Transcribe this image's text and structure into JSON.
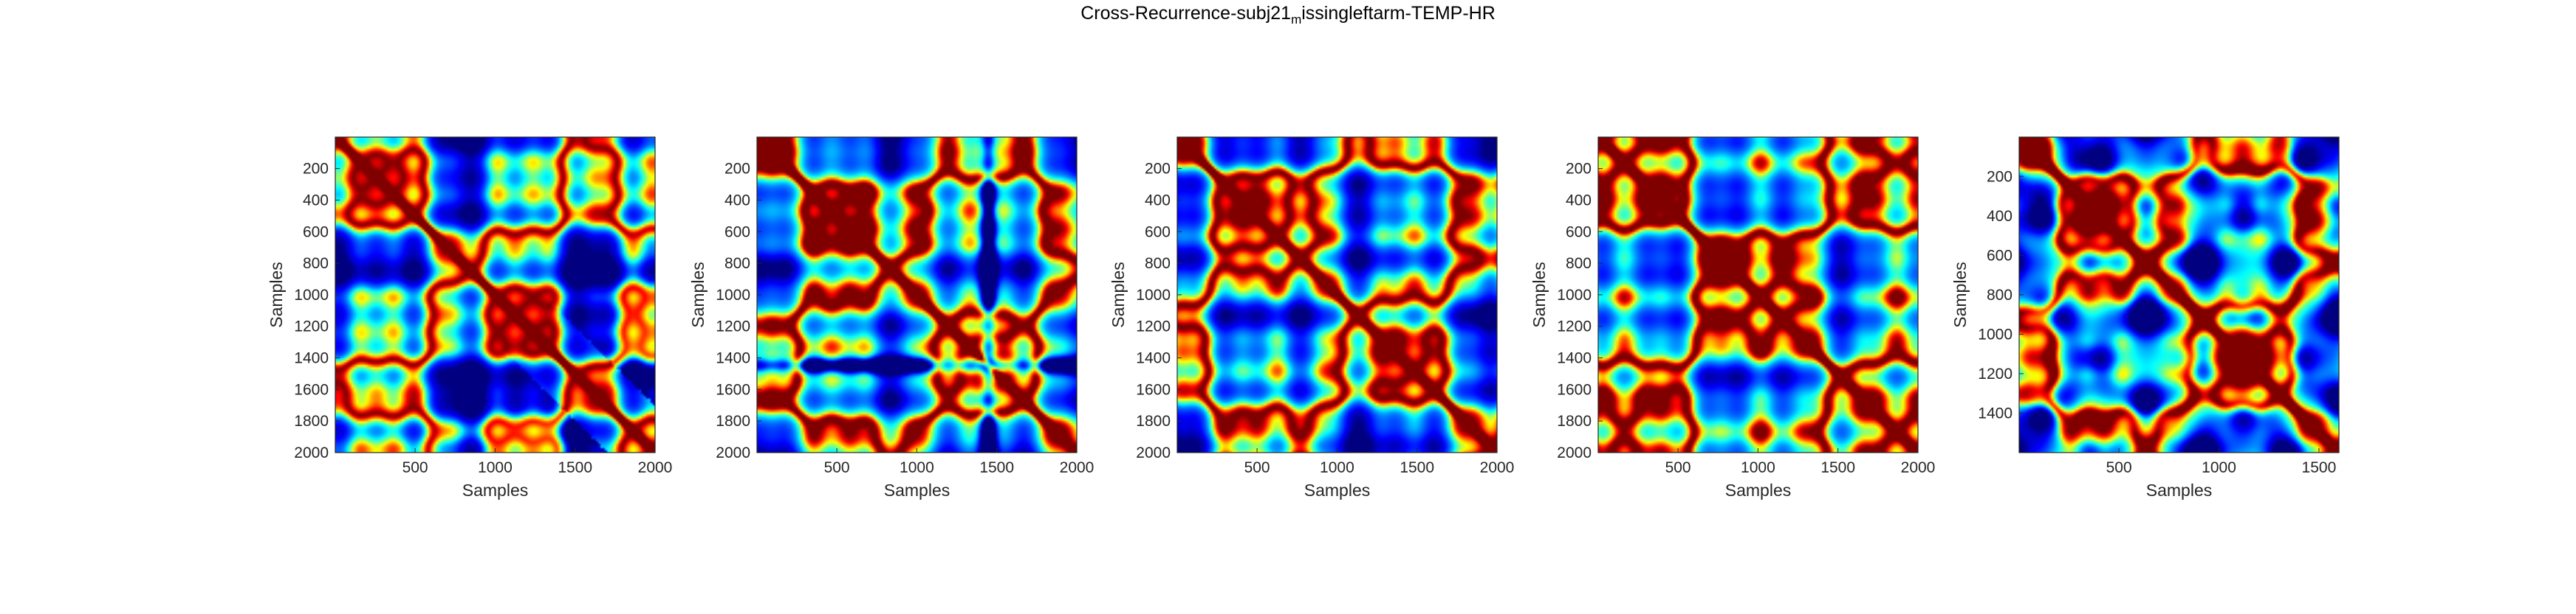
{
  "title": {
    "prefix": "Cross-Recurrence-subj21",
    "subscript": "m",
    "suffix": "issingleftarm-TEMP-HR"
  },
  "colormap": "jet",
  "chart_data": [
    {
      "type": "heatmap",
      "xlabel": "Samples",
      "ylabel": "Samples",
      "xlim": [
        1,
        2000
      ],
      "ylim": [
        1,
        2000
      ],
      "y_direction": "reversed",
      "xticks": [
        500,
        1000,
        1500,
        2000
      ],
      "yticks": [
        200,
        400,
        600,
        800,
        1000,
        1200,
        1400,
        1600,
        1800,
        2000
      ]
    },
    {
      "type": "heatmap",
      "xlabel": "Samples",
      "ylabel": "Samples",
      "xlim": [
        1,
        2000
      ],
      "ylim": [
        1,
        2000
      ],
      "y_direction": "reversed",
      "xticks": [
        500,
        1000,
        1500,
        2000
      ],
      "yticks": [
        200,
        400,
        600,
        800,
        1000,
        1200,
        1400,
        1600,
        1800,
        2000
      ]
    },
    {
      "type": "heatmap",
      "xlabel": "Samples",
      "ylabel": "Samples",
      "xlim": [
        1,
        2000
      ],
      "ylim": [
        1,
        2000
      ],
      "y_direction": "reversed",
      "xticks": [
        500,
        1000,
        1500,
        2000
      ],
      "yticks": [
        200,
        400,
        600,
        800,
        1000,
        1200,
        1400,
        1600,
        1800,
        2000
      ]
    },
    {
      "type": "heatmap",
      "xlabel": "Samples",
      "ylabel": "Samples",
      "xlim": [
        1,
        2000
      ],
      "ylim": [
        1,
        2000
      ],
      "y_direction": "reversed",
      "xticks": [
        500,
        1000,
        1500,
        2000
      ],
      "yticks": [
        200,
        400,
        600,
        800,
        1000,
        1200,
        1400,
        1600,
        1800,
        2000
      ]
    },
    {
      "type": "heatmap",
      "xlabel": "Samples",
      "ylabel": "Samples",
      "xlim": [
        1,
        1600
      ],
      "ylim": [
        1,
        1600
      ],
      "y_direction": "reversed",
      "xticks": [
        500,
        1000,
        1500
      ],
      "yticks": [
        200,
        400,
        600,
        800,
        1000,
        1200,
        1400
      ]
    }
  ]
}
